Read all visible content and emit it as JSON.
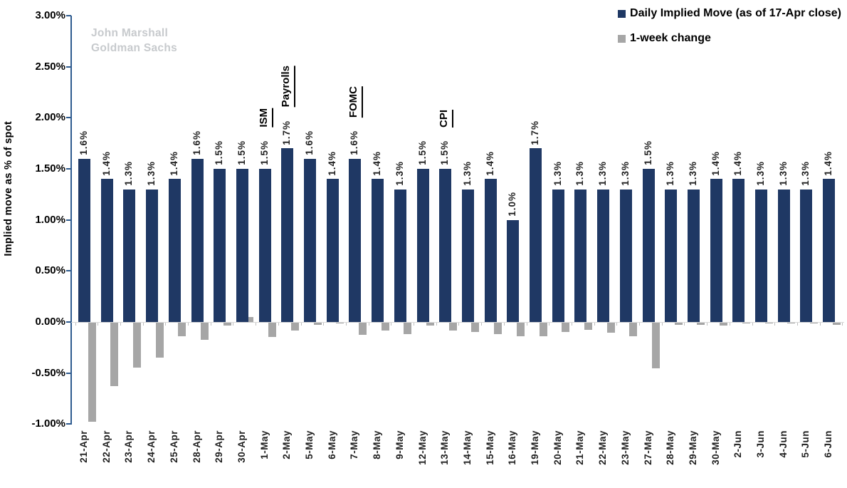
{
  "watermark": {
    "line1": "John Marshall",
    "line2": "Goldman Sachs"
  },
  "legend": {
    "items": [
      {
        "label": "Daily Implied Move (as of 17-Apr close)",
        "color": "#1F3864"
      },
      {
        "label": "1-week change",
        "color": "#A6A6A6"
      }
    ]
  },
  "colors": {
    "navy": "#1F3864",
    "gray": "#A6A6A6",
    "axis": "#2E5B8F",
    "zero_line": "#D9D9D9",
    "category_tick": "#BFBFBF",
    "watermark": "#C7CACD"
  },
  "chart_data": {
    "type": "bar",
    "title": "",
    "ylabel": "Implied move as % of spot",
    "xlabel": "",
    "ylim": [
      -1.0,
      3.0
    ],
    "y_tick_step": 0.5,
    "y_tick_labels": [
      "3.00%",
      "2.50%",
      "2.00%",
      "1.50%",
      "1.00%",
      "0.50%",
      "0.00%",
      "-0.50%",
      "-1.00%"
    ],
    "grid": false,
    "legend_position": "top-right",
    "categories": [
      "21-Apr",
      "22-Apr",
      "23-Apr",
      "24-Apr",
      "25-Apr",
      "28-Apr",
      "29-Apr",
      "30-Apr",
      "1-May",
      "2-May",
      "5-May",
      "6-May",
      "7-May",
      "8-May",
      "9-May",
      "12-May",
      "13-May",
      "14-May",
      "15-May",
      "16-May",
      "19-May",
      "20-May",
      "21-May",
      "22-May",
      "23-May",
      "27-May",
      "28-May",
      "29-May",
      "30-May",
      "2-Jun",
      "3-Jun",
      "4-Jun",
      "5-Jun",
      "6-Jun"
    ],
    "series": [
      {
        "name": "Daily Implied Move (as of 17-Apr close)",
        "color": "#1F3864",
        "values": [
          1.6,
          1.4,
          1.3,
          1.3,
          1.4,
          1.6,
          1.5,
          1.5,
          1.5,
          1.7,
          1.6,
          1.4,
          1.6,
          1.4,
          1.3,
          1.5,
          1.5,
          1.3,
          1.4,
          1.0,
          1.7,
          1.3,
          1.3,
          1.3,
          1.3,
          1.5,
          1.3,
          1.3,
          1.4,
          1.4,
          1.3,
          1.3,
          1.3,
          1.4
        ],
        "data_labels": [
          "1.6%",
          "1.4%",
          "1.3%",
          "1.3%",
          "1.4%",
          "1.6%",
          "1.5%",
          "1.5%",
          "1.5%",
          "1.7%",
          "1.6%",
          "1.4%",
          "1.6%",
          "1.4%",
          "1.3%",
          "1.5%",
          "1.5%",
          "1.3%",
          "1.4%",
          "1.0%",
          "1.7%",
          "1.3%",
          "1.3%",
          "1.3%",
          "1.3%",
          "1.5%",
          "1.3%",
          "1.3%",
          "1.4%",
          "1.4%",
          "1.3%",
          "1.3%",
          "1.3%",
          "1.4%"
        ]
      },
      {
        "name": "1-week change",
        "color": "#A6A6A6",
        "values": [
          -0.97,
          -0.62,
          -0.44,
          -0.34,
          -0.13,
          -0.17,
          -0.03,
          0.05,
          -0.14,
          -0.08,
          -0.02,
          -0.01,
          -0.12,
          -0.08,
          -0.11,
          -0.03,
          -0.08,
          -0.09,
          -0.11,
          -0.13,
          -0.13,
          -0.09,
          -0.07,
          -0.1,
          -0.13,
          -0.45,
          -0.02,
          -0.02,
          -0.03,
          -0.01,
          -0.01,
          -0.01,
          -0.01,
          -0.02
        ]
      }
    ],
    "annotations": [
      {
        "text": "ISM",
        "category": "1-May"
      },
      {
        "text": "Payrolls",
        "category": "2-May"
      },
      {
        "text": "FOMC",
        "category": "7-May"
      },
      {
        "text": "CPI",
        "category": "13-May"
      }
    ]
  }
}
